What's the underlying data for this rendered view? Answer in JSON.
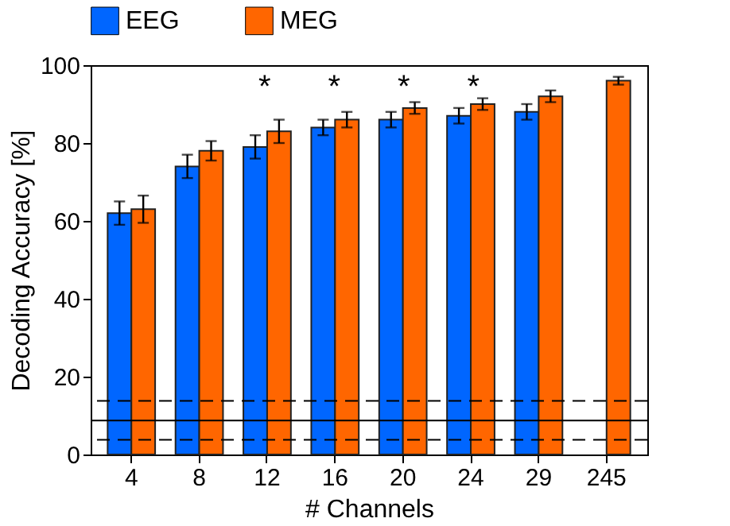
{
  "chart_data": {
    "type": "bar",
    "xlabel": "# Channels",
    "ylabel": "Decoding Accuracy [%]",
    "categories": [
      "4",
      "8",
      "12",
      "16",
      "20",
      "24",
      "29",
      "245"
    ],
    "series": [
      {
        "name": "EEG",
        "color": "#0066ff",
        "values": [
          62,
          74,
          79,
          84,
          86,
          87,
          88,
          null
        ],
        "errors": [
          3,
          3,
          3,
          2,
          2,
          2,
          2,
          null
        ]
      },
      {
        "name": "MEG",
        "color": "#ff6600",
        "values": [
          63,
          78,
          83,
          86,
          89,
          90,
          92,
          96
        ],
        "errors": [
          3.5,
          2.5,
          3,
          2,
          1.5,
          1.5,
          1.5,
          1
        ]
      }
    ],
    "ylim": [
      0,
      100
    ],
    "yticks": [
      0,
      20,
      40,
      60,
      80,
      100
    ],
    "grid": false,
    "legend": "top",
    "ref_lines": [
      {
        "axis": "y",
        "value": 8.7,
        "line_style": "solid"
      },
      {
        "axis": "y",
        "value": 13.8,
        "line_style": "dashed"
      },
      {
        "axis": "y",
        "value": 3.8,
        "line_style": "dashed"
      }
    ],
    "annotations": [
      "*",
      "*",
      "*",
      "*"
    ]
  }
}
